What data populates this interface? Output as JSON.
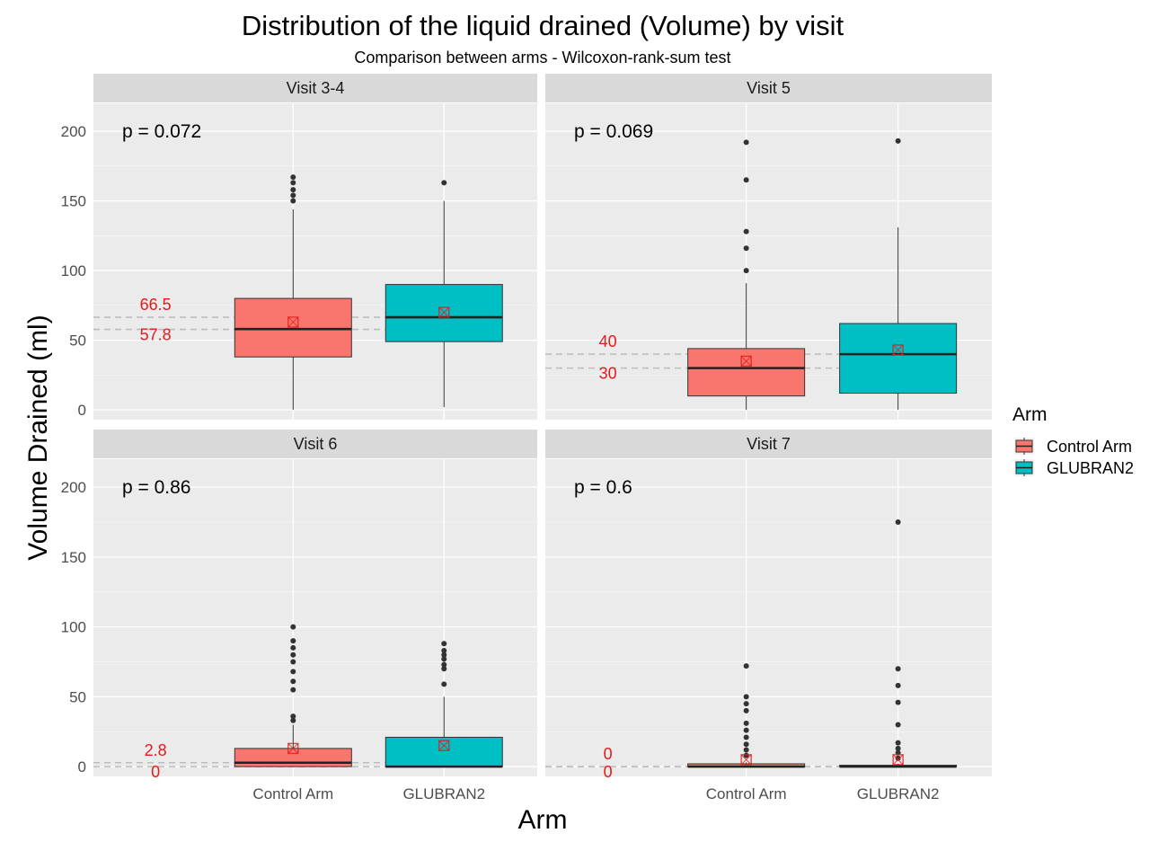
{
  "chart_data": {
    "type": "box",
    "title": "Distribution of the liquid drained (Volume) by visit",
    "subtitle": "Comparison between arms - Wilcoxon-rank-sum test",
    "xlabel": "Arm",
    "ylabel": "Volume Drained (ml)",
    "ylim": [
      -7,
      220
    ],
    "yticks": [
      0,
      50,
      100,
      150,
      200
    ],
    "categories": [
      "Control Arm",
      "GLUBRAN2"
    ],
    "legend": {
      "title": "Arm",
      "entries": [
        {
          "label": "Control Arm",
          "color": "#F8766D"
        },
        {
          "label": "GLUBRAN2",
          "color": "#00BFC4"
        }
      ]
    },
    "colors": {
      "control": "#F8766D",
      "glubran": "#00BFC4",
      "panel_bg": "#EBEBEB",
      "strip_bg": "#D9D9D9",
      "grid": "#FFFFFF",
      "reference": "#BDBDBD",
      "label": "#E41A1C",
      "mean_marker": "#E41A1C"
    },
    "panels": [
      {
        "name": "Visit 3-4",
        "p_value": "p = 0.072",
        "reference_lines": [
          {
            "value": 66.5,
            "label": "66.5"
          },
          {
            "value": 57.8,
            "label": "57.8"
          }
        ],
        "boxes": [
          {
            "arm": "Control Arm",
            "q1": 38,
            "median": 58,
            "q3": 80,
            "whisker_low": 0,
            "whisker_high": 144,
            "mean": 63,
            "outliers": [
              150,
              154,
              158,
              163,
              167
            ]
          },
          {
            "arm": "GLUBRAN2",
            "q1": 49,
            "median": 66.5,
            "q3": 90,
            "whisker_low": 2,
            "whisker_high": 150,
            "mean": 70,
            "outliers": [
              163
            ]
          }
        ]
      },
      {
        "name": "Visit 5",
        "p_value": "p = 0.069",
        "reference_lines": [
          {
            "value": 40,
            "label": "40"
          },
          {
            "value": 30,
            "label": "30"
          }
        ],
        "boxes": [
          {
            "arm": "Control Arm",
            "q1": 10,
            "median": 30,
            "q3": 44,
            "whisker_low": 0,
            "whisker_high": 91,
            "mean": 35,
            "outliers": [
              100,
              116,
              128,
              165,
              192
            ]
          },
          {
            "arm": "GLUBRAN2",
            "q1": 12,
            "median": 40,
            "q3": 62,
            "whisker_low": 0,
            "whisker_high": 131,
            "mean": 43,
            "outliers": [
              193
            ]
          }
        ]
      },
      {
        "name": "Visit 6",
        "p_value": "p = 0.86",
        "reference_lines": [
          {
            "value": 2.8,
            "label": "2.8"
          },
          {
            "value": 0,
            "label": "0"
          }
        ],
        "boxes": [
          {
            "arm": "Control Arm",
            "q1": 0,
            "median": 2.8,
            "q3": 13,
            "whisker_low": 0,
            "whisker_high": 30,
            "mean": 13,
            "outliers": [
              33,
              36,
              55,
              61,
              68,
              75,
              80,
              85,
              90,
              100
            ]
          },
          {
            "arm": "GLUBRAN2",
            "q1": 0,
            "median": 0,
            "q3": 21,
            "whisker_low": 0,
            "whisker_high": 50,
            "mean": 15,
            "outliers": [
              59,
              70,
              73,
              77,
              80,
              83,
              88
            ]
          }
        ]
      },
      {
        "name": "Visit 7",
        "p_value": "p = 0.6",
        "reference_lines": [
          {
            "value": 0,
            "label": "0"
          },
          {
            "value": 0,
            "label": "0"
          }
        ],
        "boxes": [
          {
            "arm": "Control Arm",
            "q1": 0,
            "median": 0,
            "q3": 2,
            "whisker_low": 0,
            "whisker_high": 3,
            "mean": 5,
            "outliers": [
              8,
              12,
              16,
              21,
              26,
              31,
              40,
              45,
              50,
              72
            ]
          },
          {
            "arm": "GLUBRAN2",
            "q1": 0,
            "median": 0,
            "q3": 1,
            "whisker_low": 0,
            "whisker_high": 2,
            "mean": 5,
            "outliers": [
              6,
              10,
              13,
              17,
              30,
              46,
              58,
              70,
              175
            ]
          }
        ]
      }
    ]
  }
}
